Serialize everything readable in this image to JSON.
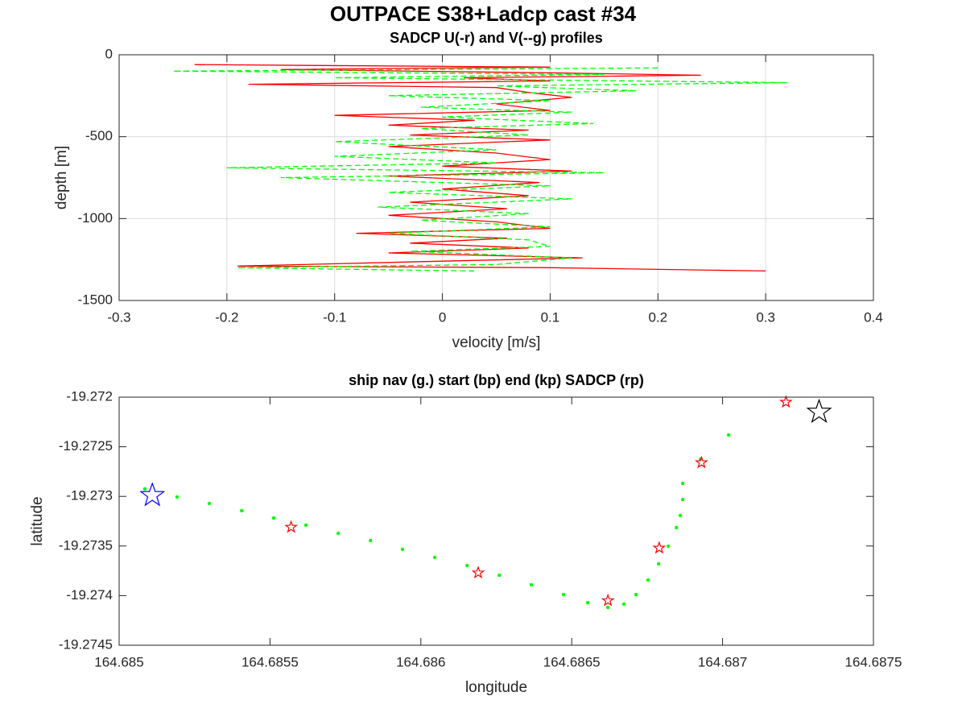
{
  "figure_title": "OUTPACE S38+Ladcp cast #34",
  "chart_data": [
    {
      "type": "line",
      "title": "SADCP U(-r) and V(--g) profiles",
      "xlabel": "velocity [m/s]",
      "ylabel": "depth [m]",
      "xlim": [
        -0.3,
        0.4
      ],
      "ylim": [
        -1500,
        0
      ],
      "xticks": [
        -0.3,
        -0.2,
        -0.1,
        0,
        0.1,
        0.2,
        0.3,
        0.4
      ],
      "yticks": [
        -1500,
        -1000,
        -500,
        0
      ],
      "grid": true,
      "series": [
        {
          "color": "#ff0000",
          "line_style": "solid",
          "x": [
            -0.23,
            0.1,
            -0.15,
            0.1,
            0.24,
            0.02,
            0.1,
            -0.18,
            0.05,
            0.08,
            0.12,
            0.05,
            0.1,
            -0.1,
            0.03,
            -0.05,
            0.08,
            -0.03,
            0.1,
            -0.05,
            0.05,
            0.1,
            0.0,
            0.12,
            -0.05,
            0.09,
            0.0,
            0.08,
            -0.03,
            0.06,
            -0.05,
            0.05,
            0.1,
            -0.08,
            0.06,
            -0.03,
            0.08,
            -0.05,
            0.13,
            0.0,
            -0.19,
            0.1,
            0.3
          ],
          "y": [
            -60,
            -75,
            -90,
            -110,
            -125,
            -140,
            -160,
            -180,
            -200,
            -230,
            -260,
            -300,
            -340,
            -370,
            -400,
            -430,
            -460,
            -490,
            -520,
            -560,
            -600,
            -640,
            -680,
            -710,
            -740,
            -780,
            -820,
            -860,
            -900,
            -940,
            -980,
            -1020,
            -1060,
            -1090,
            -1120,
            -1150,
            -1180,
            -1210,
            -1240,
            -1260,
            -1290,
            -1300,
            -1320
          ]
        },
        {
          "color": "#00ff00",
          "line_style": "dashed",
          "x": [
            0.2,
            -0.25,
            0.15,
            -0.1,
            0.32,
            0.05,
            0.18,
            -0.05,
            0.1,
            -0.02,
            0.12,
            0.0,
            0.14,
            -0.02,
            0.08,
            -0.1,
            0.05,
            -0.1,
            0.05,
            -0.2,
            0.15,
            -0.15,
            0.1,
            -0.05,
            0.12,
            -0.06,
            0.08,
            -0.02,
            0.1,
            -0.05,
            0.08,
            0.1,
            -0.03,
            0.12,
            0.05,
            -0.19,
            0.03
          ],
          "y": [
            -80,
            -100,
            -120,
            -140,
            -170,
            -190,
            -220,
            -250,
            -280,
            -320,
            -350,
            -380,
            -420,
            -450,
            -490,
            -530,
            -580,
            -620,
            -660,
            -690,
            -720,
            -750,
            -800,
            -840,
            -880,
            -930,
            -970,
            -1010,
            -1050,
            -1090,
            -1130,
            -1170,
            -1200,
            -1240,
            -1280,
            -1300,
            -1320
          ]
        }
      ]
    },
    {
      "type": "scatter",
      "title": "ship nav (g.) start (bp) end (kp) SADCP (rp)",
      "xlabel": "longitude",
      "ylabel": "latitude",
      "xlim": [
        164.685,
        164.6875
      ],
      "ylim": [
        -19.2745,
        -19.272
      ],
      "xticks": [
        164.685,
        164.6855,
        164.686,
        164.6865,
        164.687,
        164.6875
      ],
      "yticks": [
        -19.2745,
        -19.274,
        -19.2735,
        -19.273,
        -19.2725,
        -19.272
      ],
      "grid": false,
      "series": [
        {
          "color": "#00ff00",
          "marker": "dot",
          "size": 2.2,
          "x": [
            164.685085,
            164.685192,
            164.685299,
            164.685406,
            164.685512,
            164.685619,
            164.685726,
            164.685833,
            164.685939,
            164.686046,
            164.686153,
            164.68626,
            164.686366,
            164.686473,
            164.686553,
            164.68662,
            164.686673,
            164.686713,
            164.686753,
            164.686788,
            164.68682,
            164.686847,
            164.68686,
            164.686868,
            164.686868,
            164.686927,
            164.68702
          ],
          "y": [
            -19.272925,
            -19.273006,
            -19.273071,
            -19.273144,
            -19.273218,
            -19.27329,
            -19.273372,
            -19.273445,
            -19.273534,
            -19.273615,
            -19.273697,
            -19.273794,
            -19.273891,
            -19.273989,
            -19.27407,
            -19.274119,
            -19.274086,
            -19.273989,
            -19.273843,
            -19.27368,
            -19.273502,
            -19.273315,
            -19.273193,
            -19.273031,
            -19.272869,
            -19.272625,
            -19.272381
          ]
        },
        {
          "color": "#ff0000",
          "marker": "star",
          "size": 7,
          "x": [
            164.68557,
            164.68619,
            164.68662,
            164.68679,
            164.68693,
            164.68721
          ],
          "y": [
            -19.27331,
            -19.27377,
            -19.27405,
            -19.27352,
            -19.27266,
            -19.27205
          ]
        },
        {
          "color": "#0000ff",
          "marker": "star",
          "size": 15,
          "x": [
            164.68511
          ],
          "y": [
            -19.27299
          ]
        },
        {
          "color": "#000000",
          "marker": "star",
          "size": 15,
          "x": [
            164.68732
          ],
          "y": [
            -19.27215
          ]
        }
      ]
    }
  ]
}
